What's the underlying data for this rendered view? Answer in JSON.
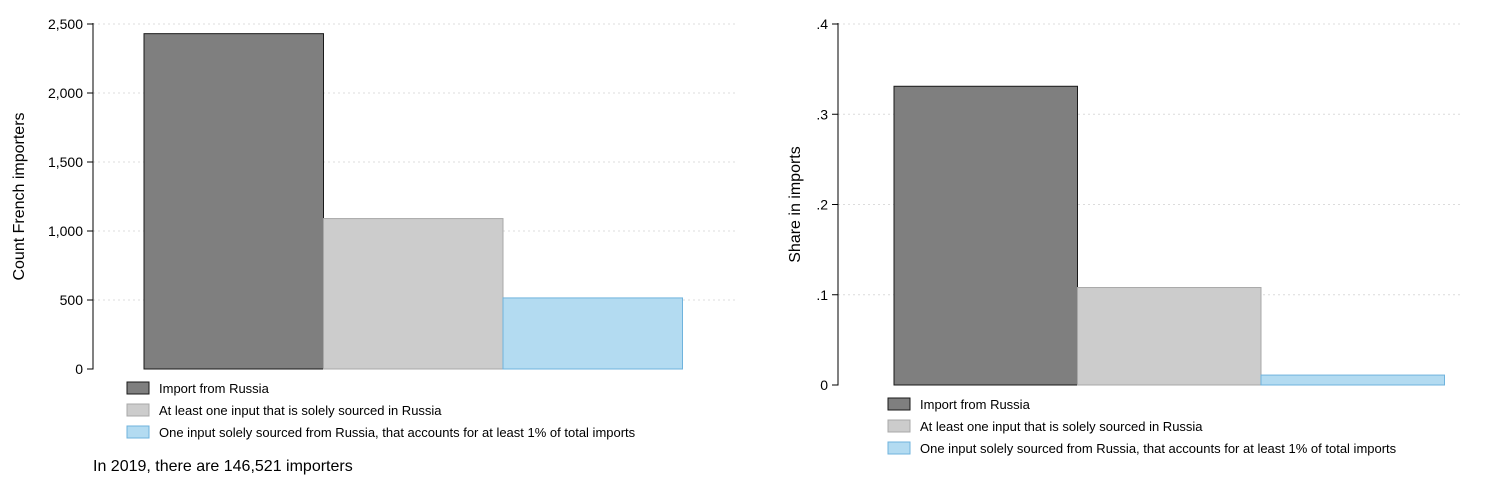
{
  "note": "In 2019, there are 146,521 importers",
  "series_styles": [
    {
      "name": "Import from Russia",
      "fill": "#7f7f7f",
      "stroke": "#1a1a1a"
    },
    {
      "name": "At least one input that is solely sourced in Russia",
      "fill": "#cccccc",
      "stroke": "#a8a8a8"
    },
    {
      "name": "One input solely sourced from Russia, that accounts for at least 1% of total imports",
      "fill": "#b3dbf1",
      "stroke": "#6fb3dd"
    }
  ],
  "chart_data": [
    {
      "type": "bar",
      "title": "",
      "xlabel": "",
      "ylabel": "Count French importers",
      "ylim": [
        0,
        2500
      ],
      "yticks": [
        0,
        500,
        1000,
        1500,
        2000,
        2500
      ],
      "ytick_labels": [
        "0",
        "500",
        "1,000",
        "1,500",
        "2,000",
        "2,500"
      ],
      "grid": true,
      "legend_position": "bottom",
      "categories": [
        "Import from Russia",
        "At least one input that is solely sourced in Russia",
        "One input solely sourced from Russia, that accounts for at least 1% of total imports"
      ],
      "values": [
        2430,
        1090,
        515
      ]
    },
    {
      "type": "bar",
      "title": "",
      "xlabel": "",
      "ylabel": "Share in imports",
      "ylim": [
        0,
        0.4
      ],
      "yticks": [
        0,
        0.1,
        0.2,
        0.3,
        0.4
      ],
      "ytick_labels": [
        "0",
        ".1",
        ".2",
        ".3",
        ".4"
      ],
      "grid": true,
      "legend_position": "bottom",
      "categories": [
        "Import from Russia",
        "At least one input that is solely sourced in Russia",
        "One input solely sourced from Russia, that accounts for at least 1% of total imports"
      ],
      "values": [
        0.331,
        0.108,
        0.011
      ]
    }
  ]
}
